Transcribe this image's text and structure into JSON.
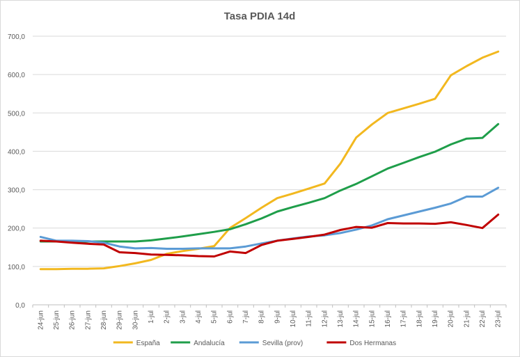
{
  "chart_data": {
    "type": "line",
    "title": "Tasa PDIA 14d",
    "xlabel": "",
    "ylabel": "",
    "ylim": [
      0,
      700
    ],
    "yticks": [
      "0,0",
      "100,0",
      "200,0",
      "300,0",
      "400,0",
      "500,0",
      "600,0",
      "700,0"
    ],
    "grid": true,
    "legend_position": "bottom",
    "categories": [
      "24-jun",
      "25-jun",
      "26-jun",
      "27-jun",
      "28-jun",
      "29-jun",
      "30-jun",
      "1-jul",
      "2-jul",
      "3-jul",
      "4-jul",
      "5-jul",
      "6-jul",
      "7-jul",
      "8-jul",
      "9-jul",
      "10-jul",
      "11-jul",
      "12-jul",
      "13-jul",
      "14-jul",
      "15-jul",
      "16-jul",
      "17-jul",
      "18-jul",
      "19-jul",
      "20-jul",
      "21-jul",
      "22-jul",
      "23-jul"
    ],
    "series": [
      {
        "name": "España",
        "color": "#f2b81f",
        "values": [
          93,
          93,
          94,
          94,
          95,
          101,
          108,
          117,
          133,
          140,
          146,
          153,
          200,
          226,
          253,
          278,
          290,
          303,
          316,
          368,
          436,
          470,
          500,
          512,
          524,
          537,
          598,
          622,
          644,
          660
        ]
      },
      {
        "name": "Andalucía",
        "color": "#1f9e4a",
        "values": [
          165,
          165,
          165,
          165,
          165,
          165,
          165,
          168,
          173,
          178,
          184,
          190,
          197,
          210,
          225,
          243,
          255,
          266,
          278,
          298,
          315,
          335,
          355,
          370,
          385,
          399,
          418,
          433,
          435,
          471
        ]
      },
      {
        "name": "Sevilla (prov)",
        "color": "#5b9bd5",
        "values": [
          177,
          167,
          167,
          166,
          162,
          152,
          147,
          148,
          146,
          146,
          147,
          147,
          147,
          152,
          160,
          167,
          173,
          178,
          181,
          187,
          196,
          207,
          223,
          233,
          243,
          253,
          264,
          282,
          282,
          305
        ]
      },
      {
        "name": "Dos Hermanas",
        "color": "#c00000",
        "values": [
          167,
          165,
          162,
          159,
          157,
          137,
          135,
          131,
          130,
          129,
          127,
          126,
          139,
          135,
          156,
          167,
          172,
          177,
          183,
          195,
          203,
          201,
          213,
          212,
          212,
          211,
          215,
          208,
          200,
          235
        ]
      }
    ]
  }
}
